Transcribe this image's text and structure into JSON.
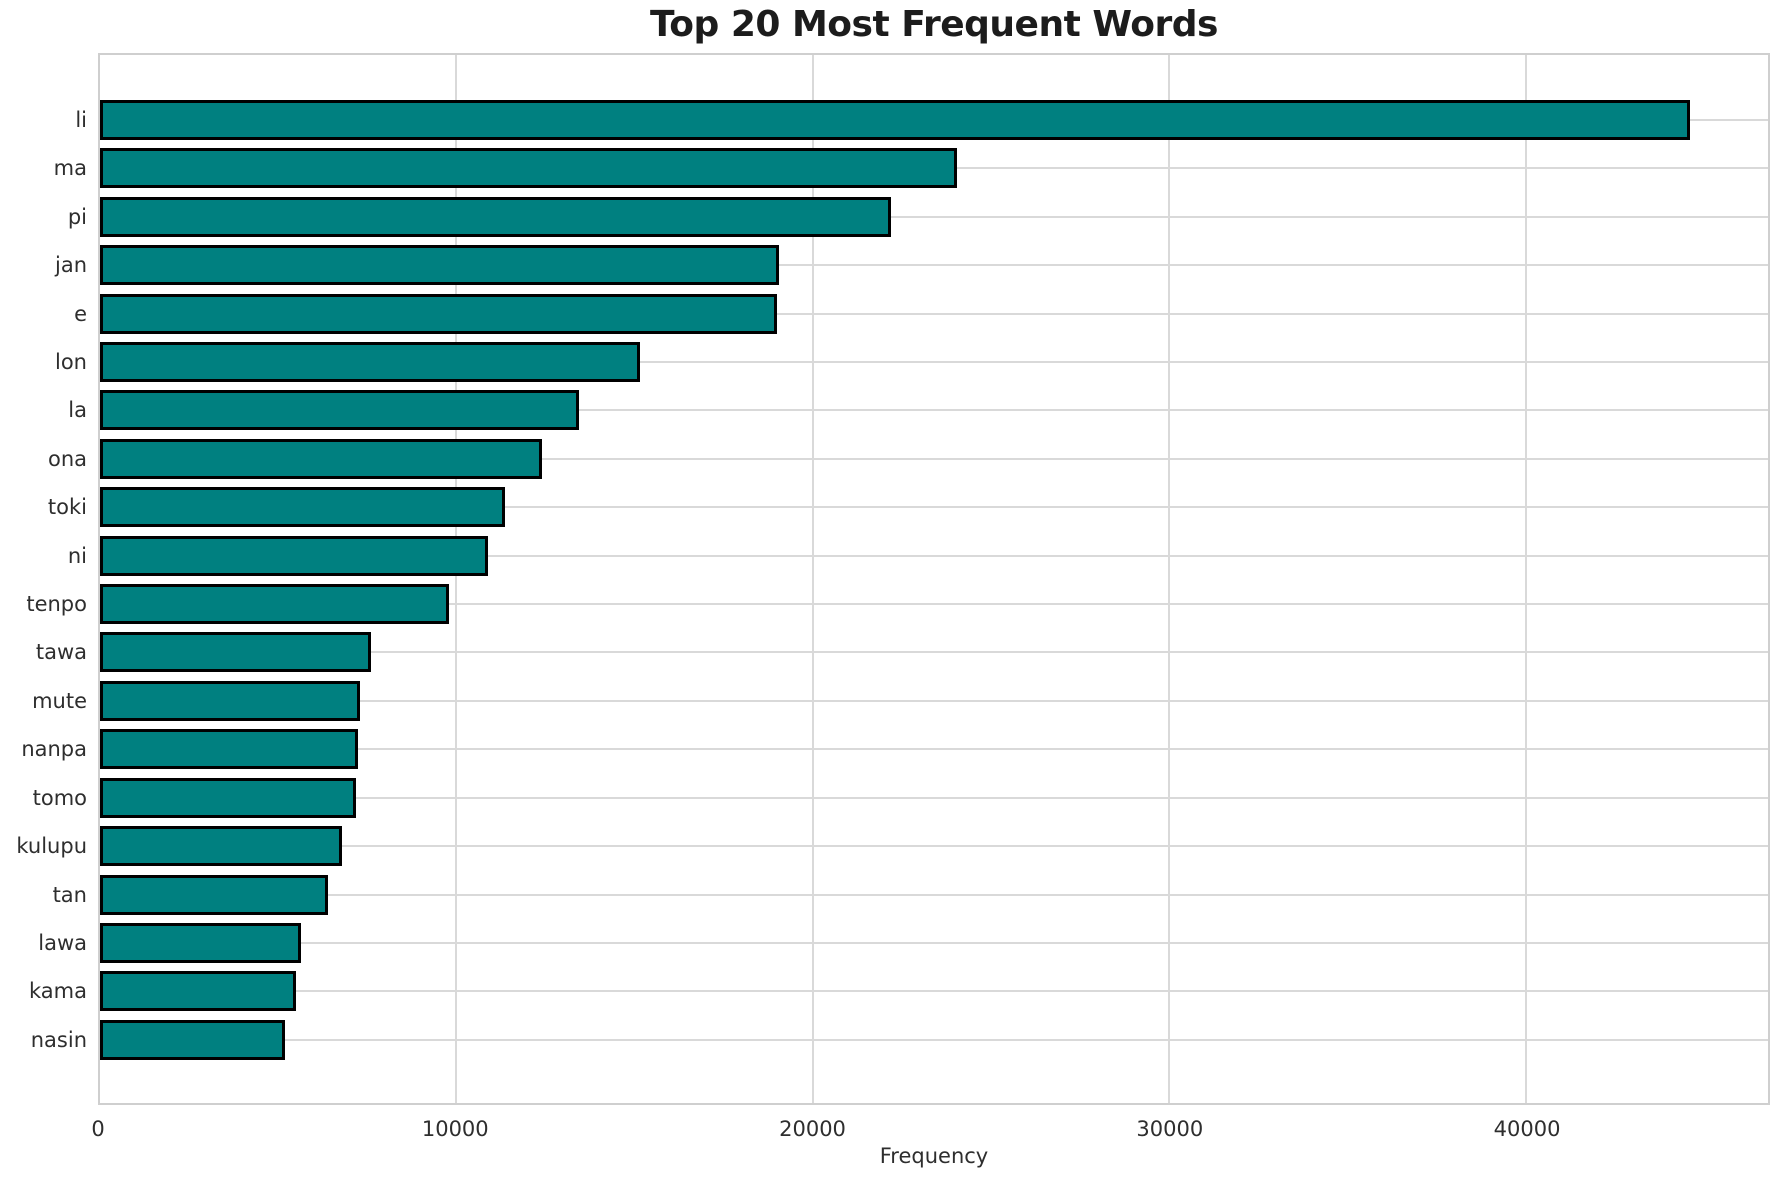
{
  "chart_data": {
    "type": "bar",
    "orientation": "horizontal",
    "title": "Top 20 Most Frequent Words",
    "xlabel": "Frequency",
    "ylabel": "",
    "categories": [
      "li",
      "ma",
      "pi",
      "jan",
      "e",
      "lon",
      "la",
      "ona",
      "toki",
      "ni",
      "tenpo",
      "tawa",
      "mute",
      "nanpa",
      "tomo",
      "kulupu",
      "tan",
      "lawa",
      "kama",
      "nasin"
    ],
    "values": [
      44600,
      24050,
      22200,
      19050,
      19000,
      15150,
      13450,
      12400,
      11350,
      10900,
      9800,
      7600,
      7300,
      7230,
      7170,
      6780,
      6390,
      5630,
      5490,
      5180
    ],
    "xticks": [
      0,
      10000,
      20000,
      30000,
      40000
    ],
    "xtick_labels": [
      "0",
      "10000",
      "20000",
      "30000",
      "40000"
    ],
    "xlim": [
      0,
      46800
    ],
    "grid": true,
    "legend": false,
    "colors": {
      "bar_fill": "#008080",
      "bar_edge": "#000000",
      "grid": "#d9d9d9",
      "spine": "#cfcfcf",
      "title_text": "#1c1c1c",
      "tick_text": "#2e2e2e",
      "background": "#ffffff"
    }
  }
}
